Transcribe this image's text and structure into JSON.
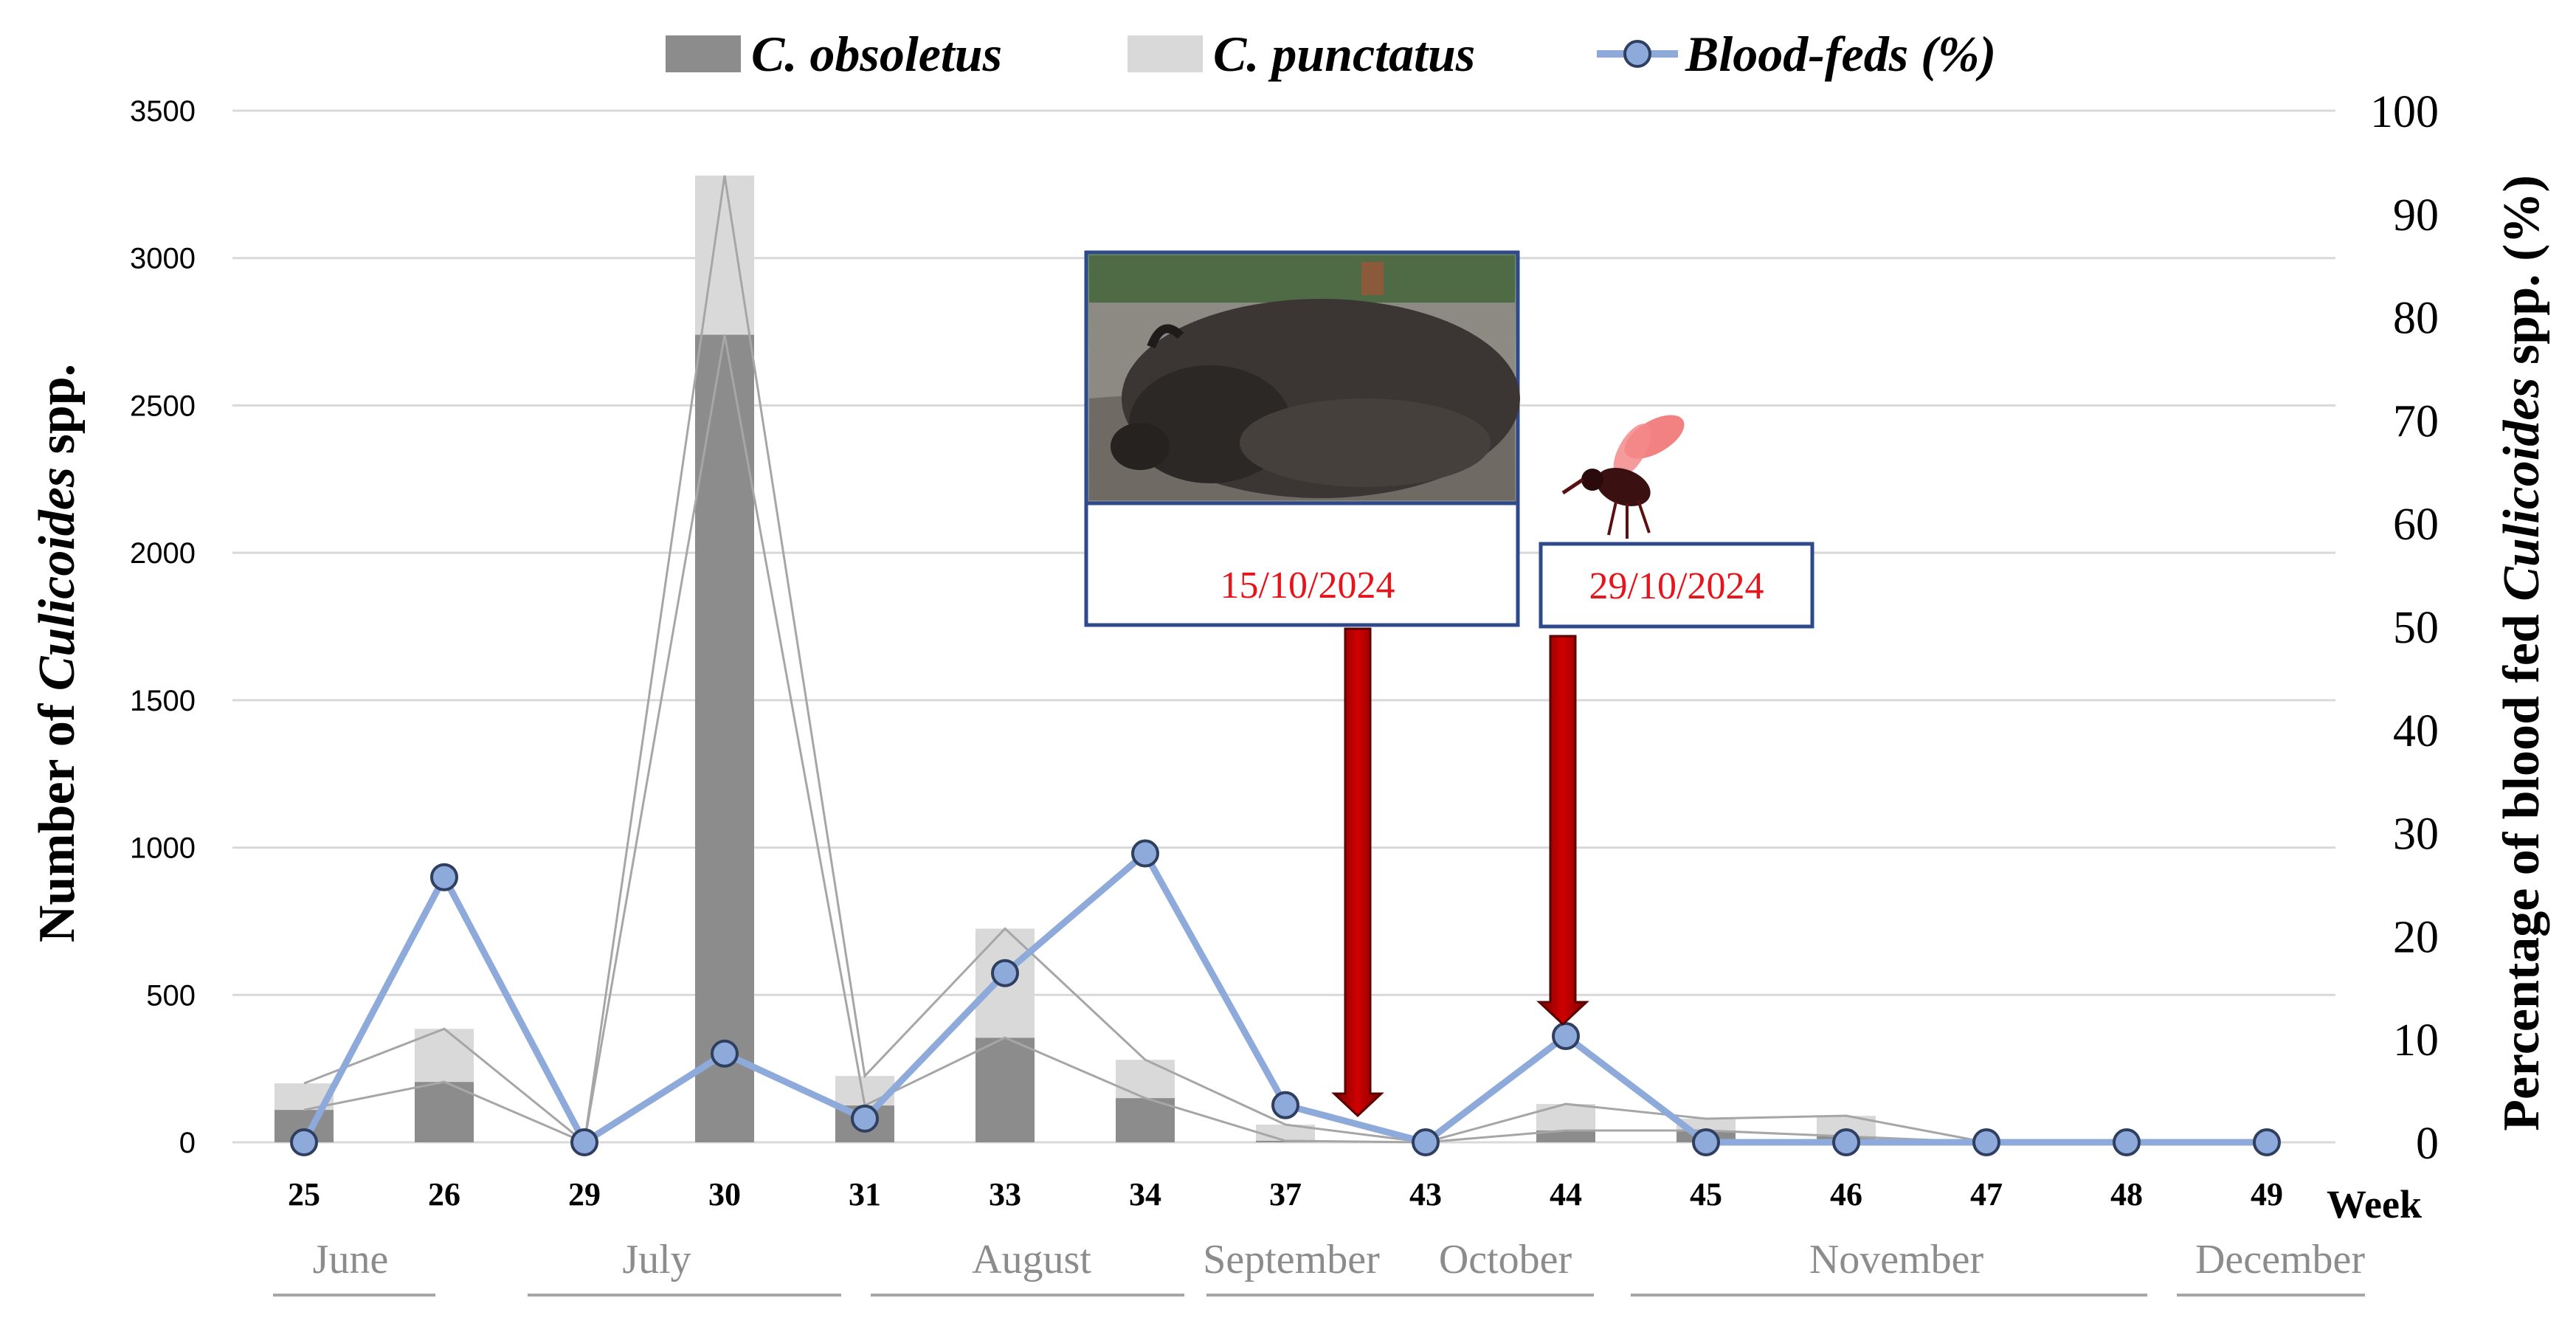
{
  "chart_data": {
    "type": "bar",
    "categories": [
      "25",
      "26",
      "29",
      "30",
      "31",
      "33",
      "34",
      "37",
      "43",
      "44",
      "45",
      "46",
      "47",
      "48",
      "49"
    ],
    "series": [
      {
        "name": "C. obsoletus",
        "type": "stacked-bar",
        "values": [
          110,
          205,
          0,
          2740,
          125,
          355,
          150,
          5,
          0,
          40,
          40,
          20,
          0,
          0,
          0
        ]
      },
      {
        "name": "C. punctatus",
        "type": "stacked-bar",
        "values": [
          90,
          180,
          0,
          950,
          100,
          370,
          130,
          55,
          0,
          90,
          40,
          70,
          0,
          0,
          0
        ]
      },
      {
        "name": "Blood-feds (%)",
        "type": "line",
        "axis": "right",
        "values": [
          0,
          25.7,
          0,
          8.6,
          2.3,
          16.4,
          28,
          3.6,
          0,
          10.3,
          0,
          0,
          0,
          0,
          0
        ]
      }
    ],
    "legend_text": {
      "obs_prefix": "C. ",
      "obs_name": "obsoletus",
      "pun_prefix": "C. ",
      "pun_name": "punctatus",
      "blood": "Blood-feds (%)"
    },
    "ylabel_left": {
      "part1": "Number of ",
      "part2": "Culicoides",
      "part3": " spp."
    },
    "ylabel_right": {
      "part1": "Percentage of blood fed ",
      "part2": "Culicoides",
      "part3": " spp. (%)"
    },
    "xlabel": "Week",
    "ylim_left": [
      0,
      3500
    ],
    "ylim_right": [
      0,
      100
    ],
    "yticks_left": [
      0,
      500,
      1000,
      1500,
      2000,
      2500,
      3000,
      3500
    ],
    "yticks_right": [
      0,
      10,
      20,
      30,
      40,
      50,
      60,
      70,
      80,
      90,
      100
    ],
    "months": [
      {
        "label": "June",
        "from": 0,
        "to": 0
      },
      {
        "label": "July",
        "from": 2,
        "to": 4
      },
      {
        "label": "August",
        "from": 4,
        "to": 6
      },
      {
        "label": "September",
        "from": 6,
        "to": 8
      },
      {
        "label": "October",
        "from": 8,
        "to": 9
      },
      {
        "label": "November",
        "from": 10,
        "to": 13
      },
      {
        "label": "December",
        "from": 14,
        "to": 14
      }
    ],
    "annotations": [
      {
        "label": "15/10/2024",
        "image": "bison-photo",
        "arrow_between": [
          7,
          8
        ]
      },
      {
        "label": "29/10/2024",
        "image": "biting-midge-icon",
        "arrow_at": 9
      }
    ],
    "colors": {
      "obsoletus": "#8c8c8c",
      "punctatus": "#d9d9d9",
      "line": "#8eaadb",
      "marker_fill": "#8eaadb",
      "marker_stroke": "#2f3f5f",
      "arrow": "#c00000",
      "annotation_border": "#2f4a8a",
      "date_text": "#e8141c",
      "grid": "#d9d9d9",
      "month": "#8c8c8c"
    },
    "grid": true,
    "legend_position": "top"
  }
}
